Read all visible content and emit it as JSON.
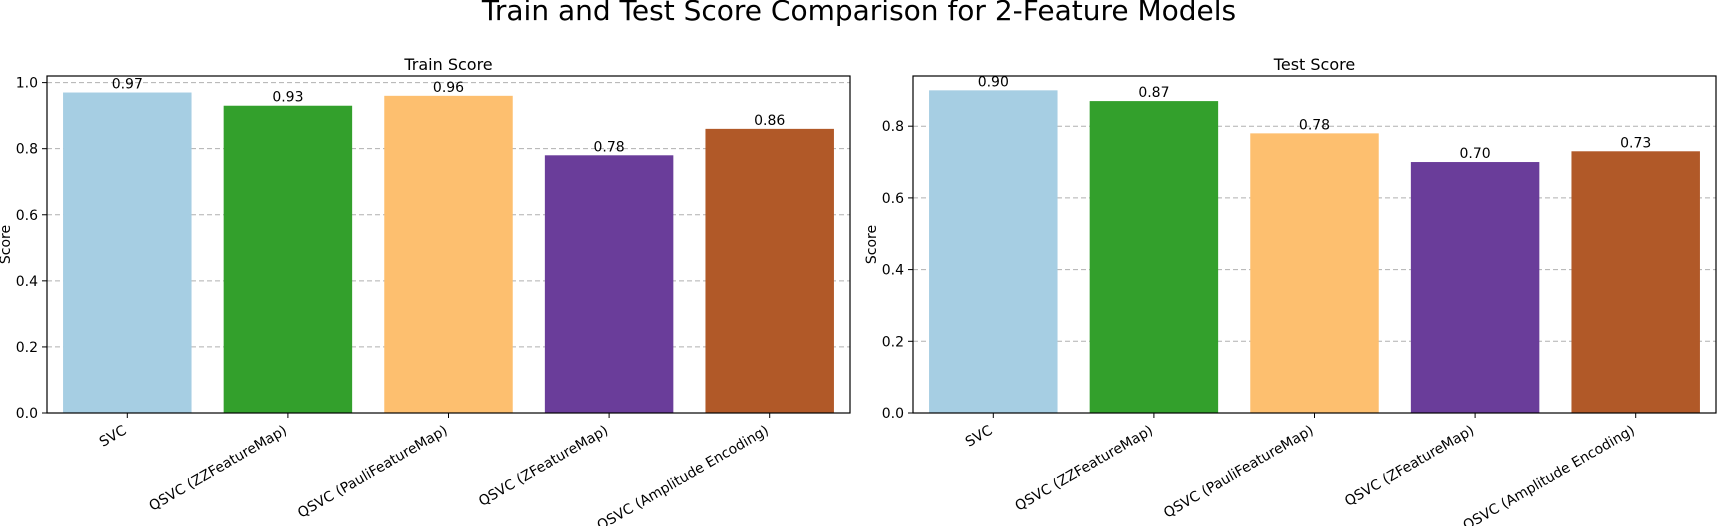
{
  "title": "Train and Test Score Comparison for 2-Feature Models",
  "chart_data": [
    {
      "type": "bar",
      "title": "Train Score",
      "xlabel": "",
      "ylabel": "Score",
      "ylim": [
        0,
        1.02
      ],
      "yticks": [
        "0.0",
        "0.2",
        "0.4",
        "0.6",
        "0.8",
        "1.0"
      ],
      "grid": "y-dashed",
      "categories": [
        "SVC",
        "QSVC (ZZFeatureMap)",
        "QSVC (PauliFeatureMap)",
        "QSVC (ZFeatureMap)",
        "QSVC (Amplitude Encoding)"
      ],
      "values": [
        0.97,
        0.93,
        0.96,
        0.78,
        0.86
      ],
      "labels": [
        "0.97",
        "0.93",
        "0.96",
        "0.78",
        "0.86"
      ],
      "colors": [
        "#a6cee3",
        "#33a02c",
        "#fdbf6f",
        "#6a3d9a",
        "#b15928"
      ]
    },
    {
      "type": "bar",
      "title": "Test Score",
      "xlabel": "",
      "ylabel": "Score",
      "ylim": [
        0,
        0.94
      ],
      "yticks": [
        "0.0",
        "0.2",
        "0.4",
        "0.6",
        "0.8"
      ],
      "grid": "y-dashed",
      "categories": [
        "SVC",
        "QSVC (ZZFeatureMap)",
        "QSVC (PauliFeatureMap)",
        "QSVC (ZFeatureMap)",
        "QSVC (Amplitude Encoding)"
      ],
      "values": [
        0.9,
        0.87,
        0.78,
        0.7,
        0.73
      ],
      "labels": [
        "0.90",
        "0.87",
        "0.78",
        "0.70",
        "0.73"
      ],
      "colors": [
        "#a6cee3",
        "#33a02c",
        "#fdbf6f",
        "#6a3d9a",
        "#b15928"
      ]
    }
  ]
}
